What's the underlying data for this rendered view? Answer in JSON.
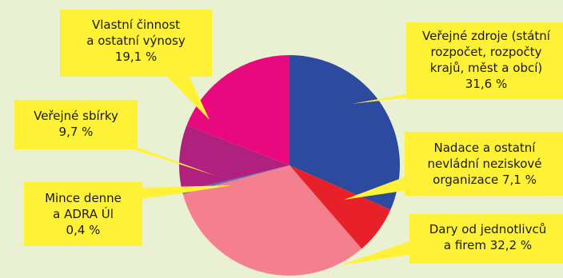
{
  "chart_data": {
    "type": "pie",
    "title": "",
    "start": "12 o'clock, clockwise",
    "slices": [
      {
        "label_lines": [
          "Veřejné zdroje (státní",
          "rozpočet, rozpočty",
          "krajů, měst a obcí)",
          "31,6 %"
        ],
        "value": 31.6,
        "color": "#2c4b9e"
      },
      {
        "label_lines": [
          "Nadace a ostatní",
          "nevládní neziskové",
          "organizace 7,1 %"
        ],
        "value": 7.1,
        "color": "#e8202a"
      },
      {
        "label_lines": [
          "Dary od jednotlivců",
          "a firem 32,2 %"
        ],
        "value": 32.2,
        "color": "#f4808f"
      },
      {
        "label_lines": [
          "Mince denne",
          "a ADRA Úl",
          "0,4 %"
        ],
        "value": 0.4,
        "color": "#4f6fc0"
      },
      {
        "label_lines": [
          "Veřejné sbírky",
          "9,7 %"
        ],
        "value": 9.7,
        "color": "#b0207e"
      },
      {
        "label_lines": [
          "Vlastní činnost",
          "a ostatní výnosy",
          "19,1 %"
        ],
        "value": 19.1,
        "color": "#e8097f"
      }
    ],
    "colors": {
      "background": "#eaf1d2",
      "callout": "#fff236"
    }
  }
}
